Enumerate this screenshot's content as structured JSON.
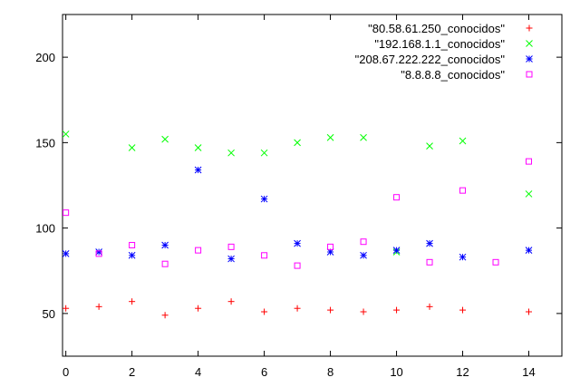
{
  "chart_data": {
    "type": "scatter",
    "title": "",
    "xlabel": "",
    "ylabel": "",
    "xlim": [
      -0.1,
      15
    ],
    "ylim": [
      25,
      225
    ],
    "xticks": [
      0,
      2,
      4,
      6,
      8,
      10,
      12,
      14
    ],
    "yticks": [
      50,
      100,
      150,
      200
    ],
    "grid": false,
    "legend_position": "top-right",
    "series": [
      {
        "name": "\"80.58.61.250_conocidos\"",
        "color": "#ff0000",
        "marker": "plus",
        "x": [
          0,
          1,
          2,
          3,
          4,
          5,
          6,
          7,
          8,
          9,
          10,
          11,
          12,
          14
        ],
        "y": [
          53,
          54,
          57,
          49,
          53,
          57,
          51,
          53,
          52,
          51,
          52,
          54,
          52,
          51
        ]
      },
      {
        "name": "\"192.168.1.1_conocidos\"",
        "color": "#00ff00",
        "marker": "cross",
        "x": [
          0,
          2,
          3,
          4,
          5,
          6,
          7,
          8,
          9,
          10,
          11,
          12,
          14
        ],
        "y": [
          155,
          147,
          152,
          147,
          144,
          144,
          150,
          153,
          153,
          86,
          148,
          151,
          120
        ]
      },
      {
        "name": "\"208.67.222.222_conocidos\"",
        "color": "#0000ff",
        "marker": "star",
        "x": [
          0,
          1,
          2,
          3,
          4,
          5,
          6,
          7,
          8,
          9,
          10,
          11,
          12,
          14
        ],
        "y": [
          85,
          86,
          84,
          90,
          134,
          82,
          117,
          91,
          86,
          84,
          87,
          91,
          83,
          87
        ]
      },
      {
        "name": "\"8.8.8.8_conocidos\"",
        "color": "#ff00ff",
        "marker": "square",
        "x": [
          0,
          1,
          2,
          3,
          4,
          5,
          6,
          7,
          8,
          9,
          10,
          11,
          12,
          13,
          14
        ],
        "y": [
          109,
          85,
          90,
          79,
          87,
          89,
          84,
          78,
          89,
          92,
          118,
          80,
          122,
          80,
          139
        ]
      }
    ]
  }
}
